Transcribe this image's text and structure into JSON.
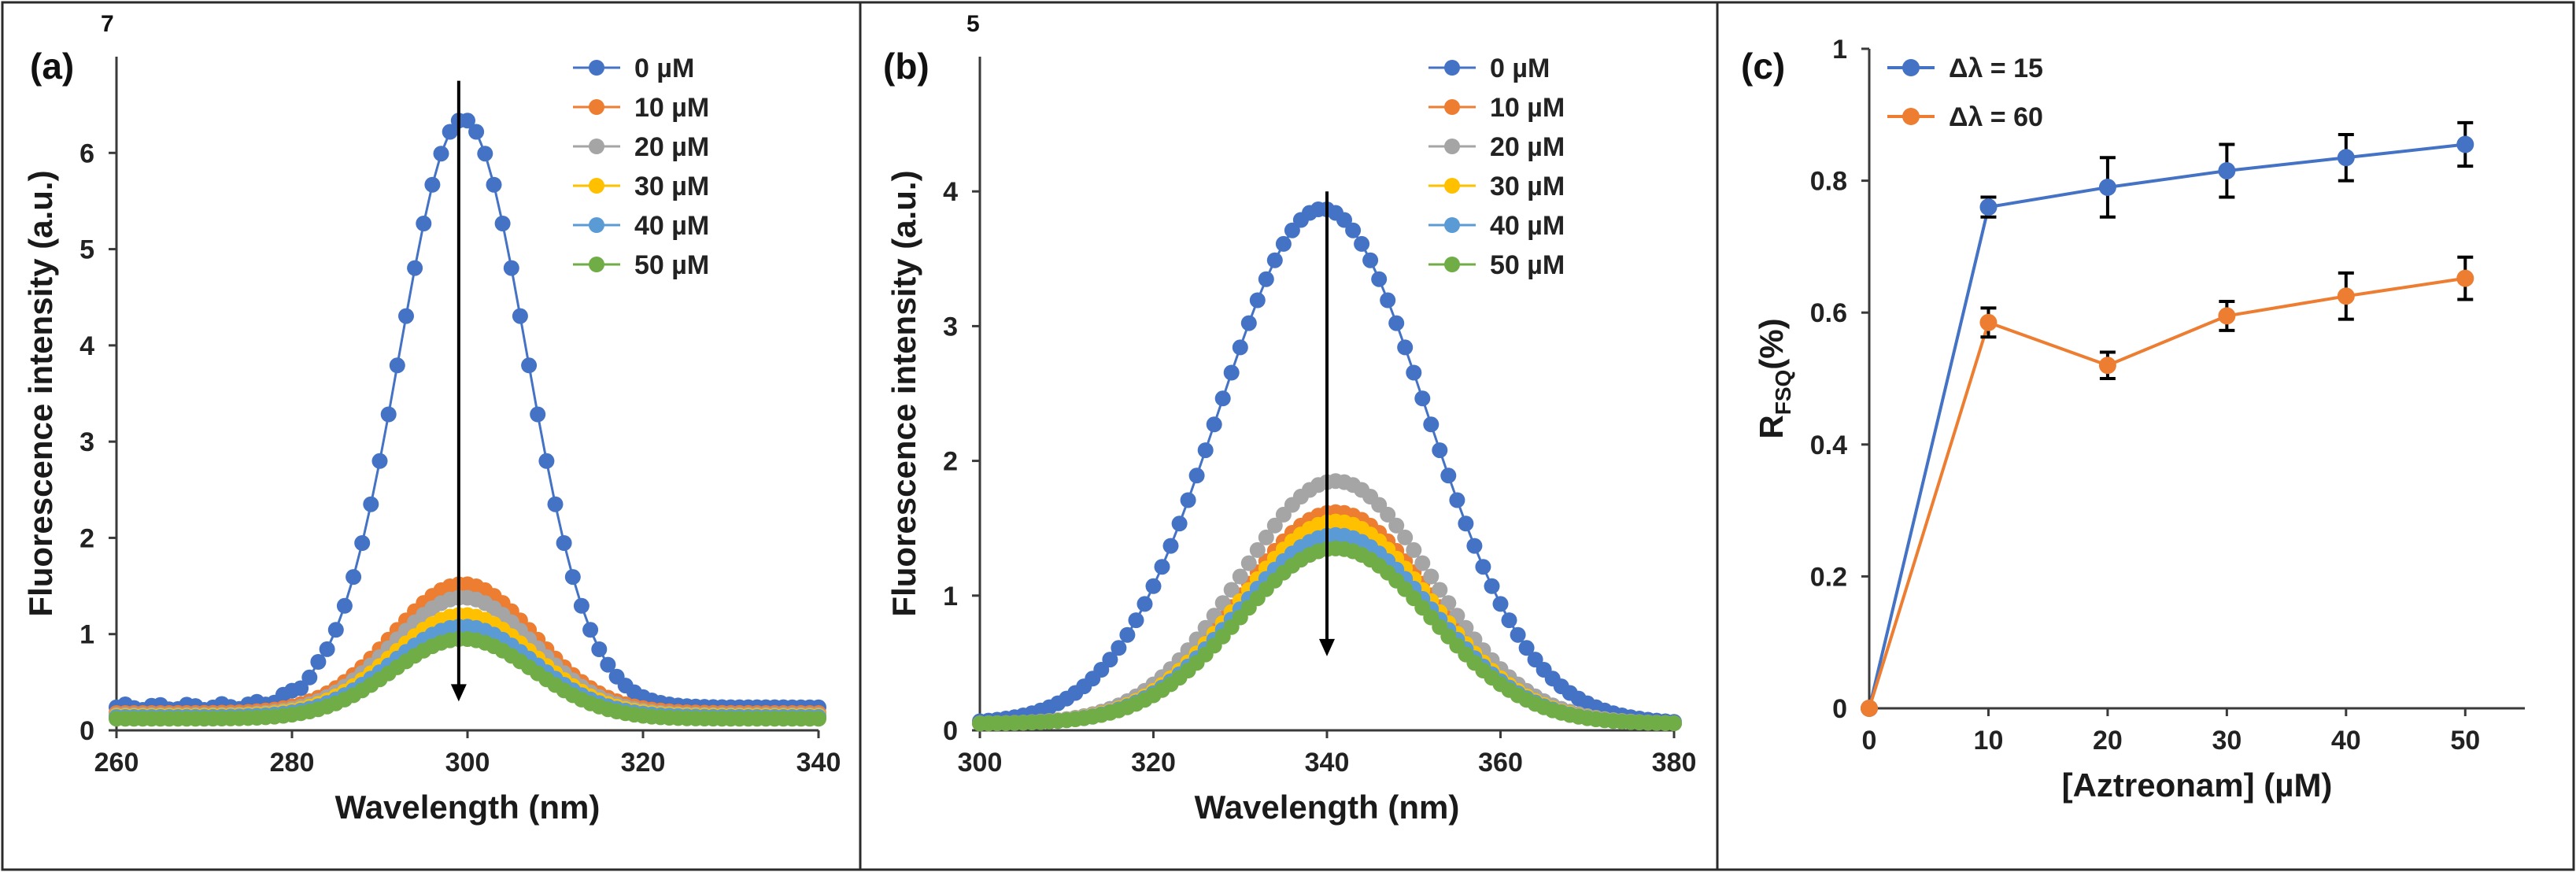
{
  "chart_data": [
    {
      "type": "line",
      "panel_label": "(a)",
      "ymax_exponent_label": "7",
      "xlabel": "Wavelength (nm)",
      "ylabel": "Fluorescence intensity (a.u.)",
      "xlim": [
        260,
        340
      ],
      "ylim": [
        0,
        7
      ],
      "xticks": [
        260,
        280,
        300,
        320,
        340
      ],
      "yticks": [
        0,
        1,
        2,
        3,
        4,
        5,
        6
      ],
      "legend_position": "top-right",
      "arrow": {
        "x": 299,
        "from_y": 6.75,
        "to_y": 0.3
      },
      "series": [
        {
          "name": "0 µM",
          "color": "#4472c4",
          "peak": 6.35,
          "center": 299.5,
          "sigma": 7.2,
          "baseline": 0.24
        },
        {
          "name": "10 µM",
          "color": "#ed7d31",
          "peak": 1.52,
          "center": 299.5,
          "sigma": 8.0,
          "baseline": 0.18
        },
        {
          "name": "20 µM",
          "color": "#a5a5a5",
          "peak": 1.38,
          "center": 299.5,
          "sigma": 8.0,
          "baseline": 0.16
        },
        {
          "name": "30 µM",
          "color": "#ffc000",
          "peak": 1.2,
          "center": 299.5,
          "sigma": 8.0,
          "baseline": 0.15
        },
        {
          "name": "40 µM",
          "color": "#5b9bd5",
          "peak": 1.08,
          "center": 299.5,
          "sigma": 8.0,
          "baseline": 0.14
        },
        {
          "name": "50 µM",
          "color": "#70ad47",
          "peak": 0.95,
          "center": 299.5,
          "sigma": 8.0,
          "baseline": 0.12
        }
      ]
    },
    {
      "type": "line",
      "panel_label": "(b)",
      "ymax_exponent_label": "5",
      "xlabel": "Wavelength (nm)",
      "ylabel": "Fluorescence intensity (a.u.)",
      "xlim": [
        300,
        380
      ],
      "ylim": [
        0,
        5
      ],
      "xticks": [
        300,
        320,
        340,
        360,
        380
      ],
      "yticks": [
        0,
        1,
        2,
        3,
        4
      ],
      "legend_position": "top-right",
      "arrow": {
        "x": 340,
        "from_y": 4.0,
        "to_y": 0.55
      },
      "series": [
        {
          "name": "0 µM",
          "color": "#4472c4",
          "peak": 3.87,
          "center": 339.5,
          "sigma": 12.0,
          "baseline": 0.05
        },
        {
          "name": "10 µM",
          "color": "#ed7d31",
          "peak": 1.62,
          "center": 341,
          "sigma": 11.0,
          "baseline": 0.05
        },
        {
          "name": "20 µM",
          "color": "#a5a5a5",
          "peak": 1.85,
          "center": 341,
          "sigma": 11.0,
          "baseline": 0.05
        },
        {
          "name": "30 µM",
          "color": "#ffc000",
          "peak": 1.55,
          "center": 341,
          "sigma": 11.0,
          "baseline": 0.05
        },
        {
          "name": "40 µM",
          "color": "#5b9bd5",
          "peak": 1.45,
          "center": 341,
          "sigma": 11.0,
          "baseline": 0.05
        },
        {
          "name": "50 µM",
          "color": "#70ad47",
          "peak": 1.35,
          "center": 341,
          "sigma": 11.0,
          "baseline": 0.05
        }
      ]
    },
    {
      "type": "line",
      "panel_label": "(c)",
      "xlabel": "[Aztreonam] (µM)",
      "ylabel": "R",
      "ylabel_subscript": "FSQ",
      "ylabel_suffix": "(%)",
      "xlim": [
        0,
        55
      ],
      "ylim": [
        0,
        1
      ],
      "xticks": [
        0,
        10,
        20,
        30,
        40,
        50
      ],
      "yticks": [
        0,
        0.2,
        0.4,
        0.6,
        0.8,
        1
      ],
      "ytick_labels": [
        "0",
        "0.2",
        "0.4",
        "0.6",
        "0.8",
        "1"
      ],
      "legend_position": "top-left",
      "x": [
        0,
        10,
        20,
        30,
        40,
        50
      ],
      "series": [
        {
          "name": "Δλ = 15",
          "color": "#4472c4",
          "values": [
            0,
            0.76,
            0.79,
            0.815,
            0.835,
            0.855
          ],
          "errors": [
            0,
            0.015,
            0.045,
            0.04,
            0.035,
            0.033
          ]
        },
        {
          "name": "Δλ = 60",
          "color": "#ed7d31",
          "values": [
            0,
            0.585,
            0.52,
            0.595,
            0.625,
            0.652
          ],
          "errors": [
            0,
            0.022,
            0.02,
            0.022,
            0.035,
            0.032
          ]
        }
      ]
    }
  ]
}
